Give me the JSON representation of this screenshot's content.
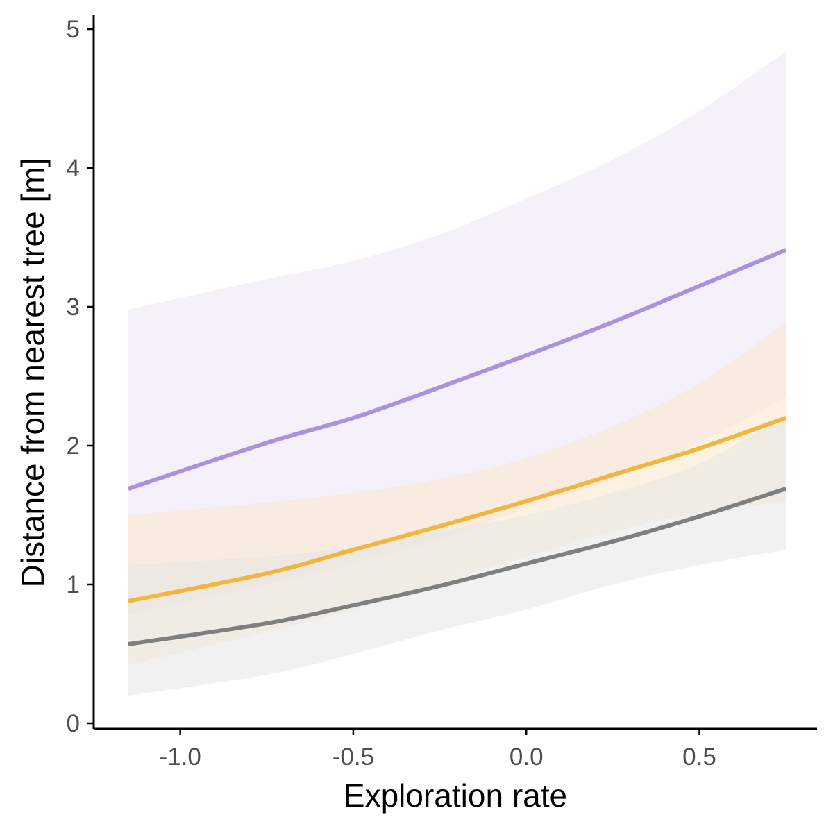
{
  "chart_data": {
    "type": "line",
    "xlabel": "Exploration rate",
    "ylabel": "Distance from nearest tree [m]",
    "xlim": [
      -1.25,
      0.84
    ],
    "ylim": [
      -0.04,
      5.1
    ],
    "x_ticks": [
      -1.0,
      -0.5,
      0.0,
      0.5
    ],
    "x_tick_labels": [
      "-1.0",
      "-0.5",
      "0.0",
      "0.5"
    ],
    "y_ticks": [
      0,
      1,
      2,
      3,
      4,
      5
    ],
    "y_tick_labels": [
      "0",
      "1",
      "2",
      "3",
      "4",
      "5"
    ],
    "grid": false,
    "legend": "none",
    "x": [
      -1.15,
      -0.75,
      -0.5,
      -0.25,
      0.0,
      0.25,
      0.5,
      0.75
    ],
    "series": [
      {
        "color": "#aa92de",
        "band_color": "#ebe6f7",
        "y": [
          1.69,
          2.02,
          2.2,
          2.42,
          2.65,
          2.89,
          3.15,
          3.41
        ],
        "lower": [
          0.78,
          1.0,
          1.15,
          1.33,
          1.55,
          1.76,
          2.02,
          2.35
        ],
        "upper": [
          2.98,
          3.2,
          3.33,
          3.52,
          3.78,
          4.06,
          4.41,
          4.84
        ]
      },
      {
        "color": "#f2b640",
        "band_color": "#fbe6c9",
        "y": [
          0.88,
          1.08,
          1.25,
          1.42,
          1.6,
          1.79,
          1.98,
          2.2
        ],
        "lower": [
          0.42,
          0.66,
          0.82,
          1.01,
          1.2,
          1.38,
          1.52,
          1.6
        ],
        "upper": [
          1.5,
          1.59,
          1.66,
          1.76,
          1.91,
          2.14,
          2.45,
          2.89
        ]
      },
      {
        "color": "#7f7f7f",
        "band_color": "#e5e5e5",
        "y": [
          0.57,
          0.72,
          0.85,
          0.99,
          1.15,
          1.31,
          1.49,
          1.69
        ],
        "lower": [
          0.2,
          0.35,
          0.5,
          0.67,
          0.82,
          1.0,
          1.14,
          1.25
        ],
        "upper": [
          1.14,
          1.2,
          1.27,
          1.38,
          1.5,
          1.66,
          1.87,
          2.22
        ]
      }
    ]
  }
}
